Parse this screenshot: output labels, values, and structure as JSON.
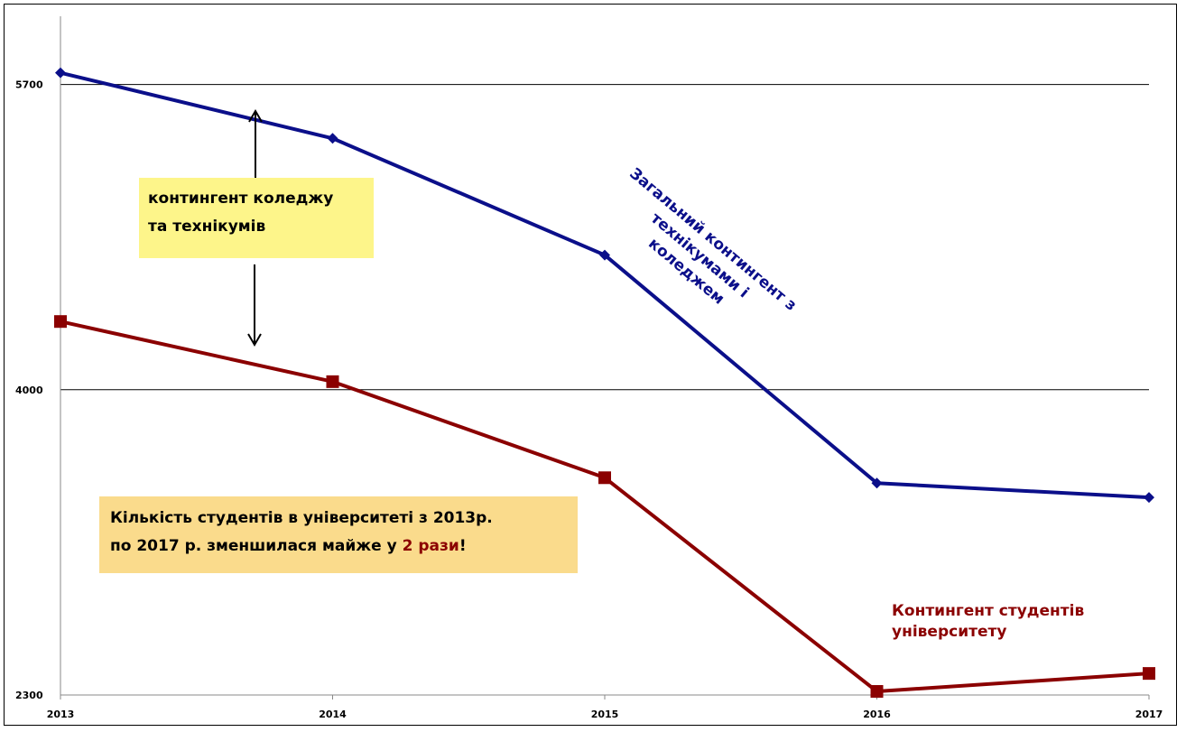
{
  "chart_data": {
    "type": "line",
    "x": [
      "2013",
      "2014",
      "2015",
      "2016",
      "2017"
    ],
    "series": [
      {
        "name": "Загальний контингент з технікумами і коледжем",
        "color": "#0b0f8a",
        "marker": "diamond",
        "values": [
          5765,
          5400,
          4750,
          3480,
          3400
        ]
      },
      {
        "name": "Контингент студентів університету",
        "color": "#8b0000",
        "marker": "square",
        "values": [
          4380,
          4045,
          3510,
          2320,
          2420
        ]
      }
    ],
    "y_ticks": [
      5700,
      4000,
      2300
    ],
    "ylim": [
      2300,
      6080
    ],
    "grid": true,
    "annotations": {
      "college_line1": "контингент коледжу",
      "college_line2": "та технікумів",
      "university_line1": "Кількість студентів в університеті з 2013р.",
      "university_line2_prefix": "по 2017 р. зменшилася майже у ",
      "university_line2_highlight": "2 рази",
      "university_line2_suffix": "!",
      "total_line1": "Загальний контингент з",
      "total_line2": "технікумами і коледжем",
      "university_label_line1": "Контингент  студентів",
      "university_label_line2": "університету"
    }
  }
}
